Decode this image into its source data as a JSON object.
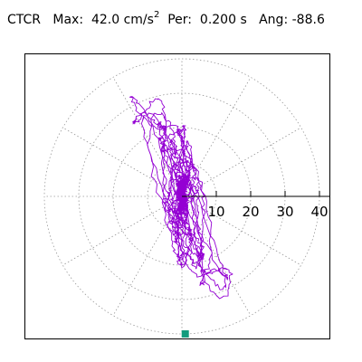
{
  "header": {
    "station": "CTCR",
    "max_label": "Max:",
    "max_value": "42.0",
    "max_unit": "cm/s",
    "max_unit_exp": "2",
    "per_label": "Per:",
    "per_value": "0.200 s",
    "ang_label": "Ang:",
    "ang_value": "-88.6"
  },
  "colors": {
    "trace": "#9400d3",
    "grid": "#9a9a9a",
    "axis": "#000000",
    "marker": "#129b7d"
  },
  "chart_data": {
    "type": "polar-particle-motion",
    "radial_ticks": [
      10,
      20,
      30,
      40
    ],
    "tick_labels": [
      "10",
      "20",
      "30",
      "40"
    ],
    "rmax": 40,
    "spoke_angles_deg": [
      30,
      60,
      90,
      120,
      150,
      180,
      210,
      240,
      270,
      300,
      330
    ],
    "grid": true,
    "peak": {
      "value": 42.0,
      "angle_deg": -88.6
    }
  }
}
